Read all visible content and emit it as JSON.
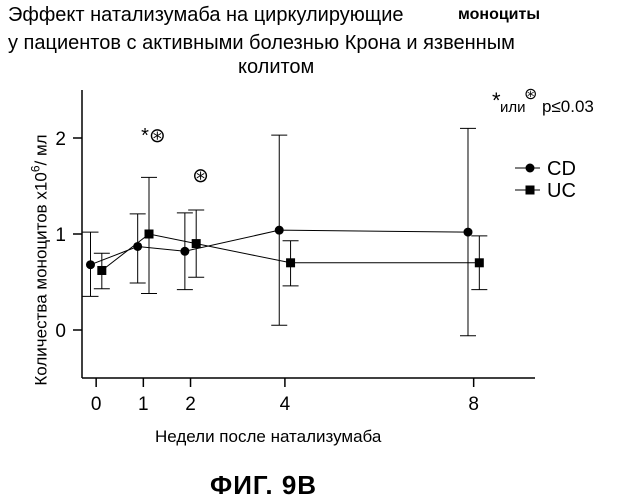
{
  "chart_data": {
    "type": "line",
    "title_line1": "Эффект натализумаба на циркулирующие",
    "title_line1_bold": "моноциты",
    "title_line2": "у пациентов с активными болезнью Крона и язвенным",
    "title_line3": "колитом",
    "xlabel": "Недели после натализумаба",
    "ylabel": "Количества моноцитов  х10",
    "ylabel_sup": "6",
    "ylabel_unit": "/ мл",
    "x_ticks": [
      0,
      1,
      2,
      4,
      8
    ],
    "y_ticks": [
      0,
      1,
      2
    ],
    "xlim": [
      -0.3,
      9.3
    ],
    "ylim": [
      -0.5,
      2.5
    ],
    "legend_position": "right",
    "series": [
      {
        "name": "CD",
        "marker": "circle",
        "points": [
          {
            "x": 0,
            "y": 0.68,
            "lo": 0.35,
            "hi": 1.02
          },
          {
            "x": 1,
            "y": 0.87,
            "lo": 0.49,
            "hi": 1.21
          },
          {
            "x": 2,
            "y": 0.82,
            "lo": 0.42,
            "hi": 1.22
          },
          {
            "x": 4,
            "y": 1.04,
            "lo": 0.05,
            "hi": 2.03
          },
          {
            "x": 8,
            "y": 1.02,
            "lo": -0.06,
            "hi": 2.1
          }
        ]
      },
      {
        "name": "UC",
        "marker": "square",
        "points": [
          {
            "x": 0,
            "y": 0.62,
            "lo": 0.43,
            "hi": 0.8
          },
          {
            "x": 1,
            "y": 1.0,
            "lo": 0.38,
            "hi": 1.59
          },
          {
            "x": 2,
            "y": 0.9,
            "lo": 0.55,
            "hi": 1.25
          },
          {
            "x": 4,
            "y": 0.7,
            "lo": 0.46,
            "hi": 0.93
          },
          {
            "x": 8,
            "y": 0.7,
            "lo": 0.42,
            "hi": 0.98
          }
        ]
      }
    ],
    "annotations": [
      {
        "x": 1,
        "text": "*⊛"
      },
      {
        "x": 2,
        "text": "⊛"
      }
    ],
    "significance_note": {
      "prefix": "*",
      "middle": "или",
      "symbol": "⊛",
      "suffix": "p≤0.03"
    }
  },
  "figure_caption": "ФИГ. 9В"
}
